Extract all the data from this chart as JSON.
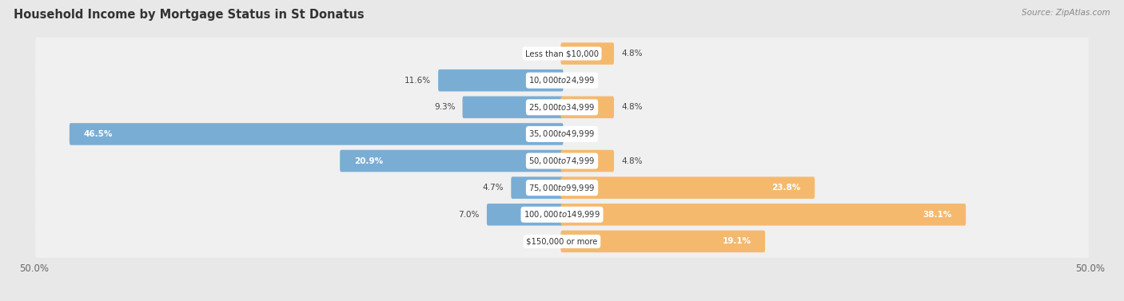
{
  "title": "Household Income by Mortgage Status in St Donatus",
  "source": "Source: ZipAtlas.com",
  "categories": [
    "Less than $10,000",
    "$10,000 to $24,999",
    "$25,000 to $34,999",
    "$35,000 to $49,999",
    "$50,000 to $74,999",
    "$75,000 to $99,999",
    "$100,000 to $149,999",
    "$150,000 or more"
  ],
  "without_mortgage": [
    0.0,
    11.6,
    9.3,
    46.5,
    20.9,
    4.7,
    7.0,
    0.0
  ],
  "with_mortgage": [
    4.8,
    0.0,
    4.8,
    0.0,
    4.8,
    23.8,
    38.1,
    19.1
  ],
  "color_without": "#7aadd4",
  "color_with": "#f5b96e",
  "xlim": 50.0,
  "bg_color": "#e8e8e8",
  "row_bg_color": "#f0f0f0",
  "axis_label_left": "50.0%",
  "axis_label_right": "50.0%",
  "bar_label_threshold": 15.0
}
